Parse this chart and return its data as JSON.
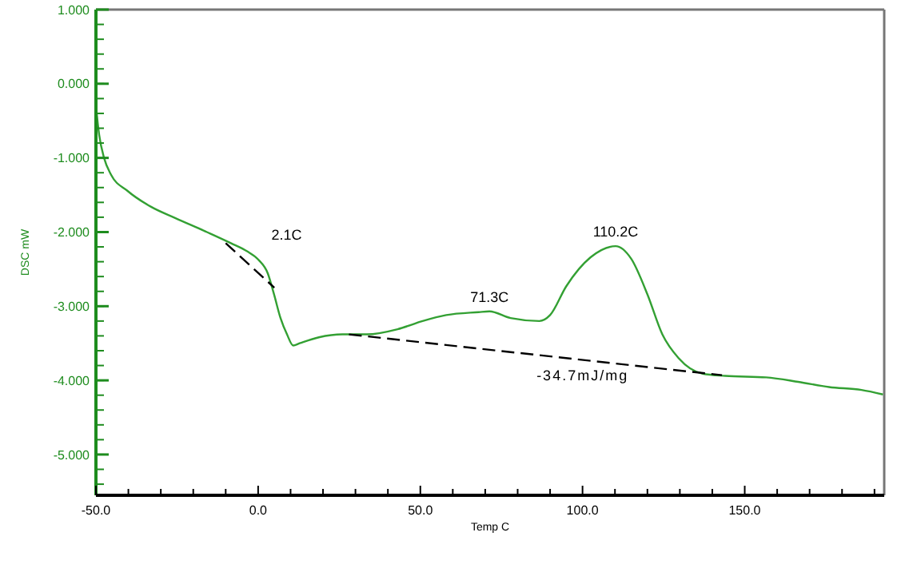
{
  "chart_data": {
    "type": "line",
    "xlabel": "Temp C",
    "ylabel": "DSC mW",
    "xlim": [
      -50,
      193
    ],
    "ylim": [
      -5.55,
      1
    ],
    "xticks": [
      {
        "value": -50,
        "label": "-50.0"
      },
      {
        "value": -40,
        "label": null
      },
      {
        "value": -30,
        "label": null
      },
      {
        "value": -20,
        "label": null
      },
      {
        "value": -10,
        "label": null
      },
      {
        "value": 0,
        "label": "0.0"
      },
      {
        "value": 10,
        "label": null
      },
      {
        "value": 20,
        "label": null
      },
      {
        "value": 30,
        "label": null
      },
      {
        "value": 40,
        "label": null
      },
      {
        "value": 50,
        "label": "50.0"
      },
      {
        "value": 60,
        "label": null
      },
      {
        "value": 70,
        "label": null
      },
      {
        "value": 80,
        "label": null
      },
      {
        "value": 90,
        "label": null
      },
      {
        "value": 100,
        "label": "100.0"
      },
      {
        "value": 110,
        "label": null
      },
      {
        "value": 120,
        "label": null
      },
      {
        "value": 130,
        "label": null
      },
      {
        "value": 140,
        "label": null
      },
      {
        "value": 150,
        "label": "150.0"
      },
      {
        "value": 160,
        "label": null
      },
      {
        "value": 170,
        "label": null
      },
      {
        "value": 180,
        "label": null
      },
      {
        "value": 190,
        "label": null
      }
    ],
    "yticks": [
      {
        "value": -5,
        "label": "-5.000"
      },
      {
        "value": -4,
        "label": "-4.000"
      },
      {
        "value": -3,
        "label": "-3.000"
      },
      {
        "value": -2,
        "label": "-2.000"
      },
      {
        "value": -1,
        "label": "-1.000"
      },
      {
        "value": 0,
        "label": "0.000"
      },
      {
        "value": 1,
        "label": "1.000"
      }
    ],
    "series": [
      {
        "color": "#33a033",
        "line_style": "solid",
        "x": [
          -50,
          -49,
          -47.5,
          -45.3,
          -40.4,
          -33,
          -25.6,
          -15.8,
          -8.4,
          -3.4,
          0,
          3,
          4.9,
          6.9,
          8.9,
          10.8,
          12.8,
          18.7,
          26,
          33.5,
          43,
          50.7,
          58,
          68,
          71.3,
          77.8,
          86.7,
          90,
          95,
          102.5,
          110.2,
          115,
          120,
          124.6,
          129.6,
          137,
          144,
          156.6,
          166.5,
          176,
          186,
          192.6
        ],
        "values": [
          -0.3,
          -0.69,
          -1.0,
          -1.23,
          -1.44,
          -1.66,
          -1.81,
          -2.0,
          -2.15,
          -2.26,
          -2.37,
          -2.56,
          -2.84,
          -3.16,
          -3.38,
          -3.53,
          -3.5,
          -3.42,
          -3.38,
          -3.38,
          -3.31,
          -3.2,
          -3.12,
          -3.08,
          -3.07,
          -3.16,
          -3.2,
          -3.12,
          -2.73,
          -2.34,
          -2.19,
          -2.36,
          -2.84,
          -3.38,
          -3.7,
          -3.91,
          -3.94,
          -3.96,
          -4.02,
          -4.09,
          -4.13,
          -4.19
        ]
      },
      {
        "color": "#000000",
        "line_style": "dashed",
        "x": [
          28,
          143
        ],
        "values": [
          -3.38,
          -3.93
        ]
      },
      {
        "color": "#000000",
        "line_style": "dashed",
        "x": [
          -10,
          5
        ],
        "values": [
          -2.15,
          -2.75
        ]
      }
    ],
    "annotations": [
      {
        "text": "2.1C",
        "x": 2.1,
        "y": -2.4
      },
      {
        "text": "71.3C",
        "x": 71.3,
        "y": -3.07
      },
      {
        "text": "110.2C",
        "x": 110.2,
        "y": -2.19
      },
      {
        "text": "-34.7mJ/mg",
        "x": 100,
        "y": -3.7
      }
    ]
  }
}
